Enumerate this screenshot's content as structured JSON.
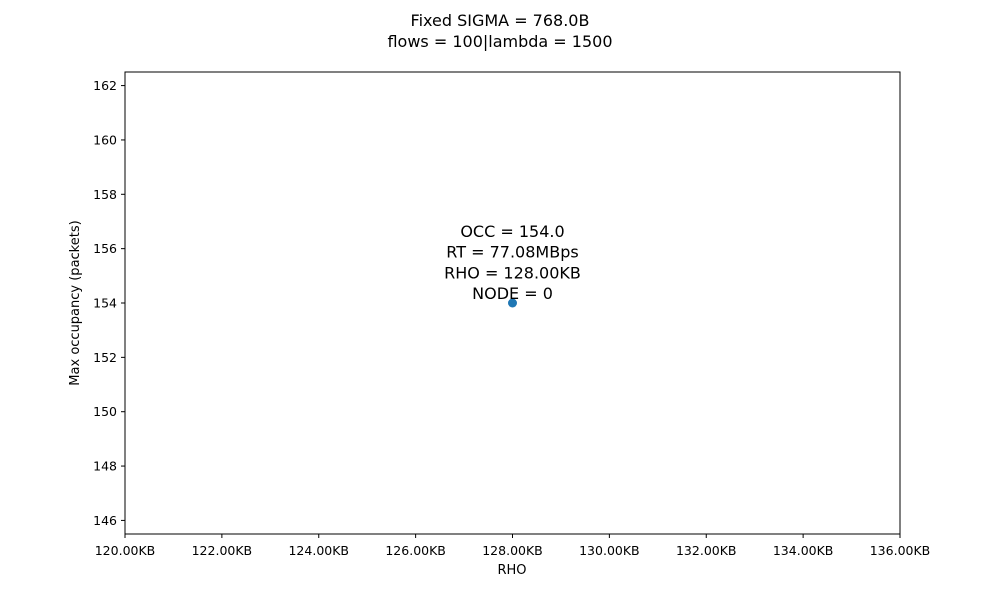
{
  "chart_data": {
    "type": "scatter",
    "title": "Fixed SIGMA = 768.0B",
    "subtitle": "flows = 100|lambda = 1500",
    "xlabel": "RHO",
    "ylabel": "Max occupancy (packets)",
    "xlim": [
      120,
      136
    ],
    "ylim": [
      145.5,
      162.5
    ],
    "x_unit": "KB",
    "x_ticks": [
      120,
      122,
      124,
      126,
      128,
      130,
      132,
      134,
      136
    ],
    "x_tick_labels": [
      "120.00KB",
      "122.00KB",
      "124.00KB",
      "126.00KB",
      "128.00KB",
      "130.00KB",
      "132.00KB",
      "134.00KB",
      "136.00KB"
    ],
    "y_ticks": [
      146,
      148,
      150,
      152,
      154,
      156,
      158,
      160,
      162
    ],
    "y_tick_labels": [
      "146",
      "148",
      "150",
      "152",
      "154",
      "156",
      "158",
      "160",
      "162"
    ],
    "grid": false,
    "legend": "none",
    "points": [
      {
        "x": 128,
        "y": 154,
        "color": "#1f77b4"
      }
    ],
    "annotations": [
      {
        "lines": [
          "OCC = 154.0",
          "RT = 77.08MBps",
          "RHO = 128.00KB",
          "NODE = 0"
        ]
      }
    ]
  }
}
